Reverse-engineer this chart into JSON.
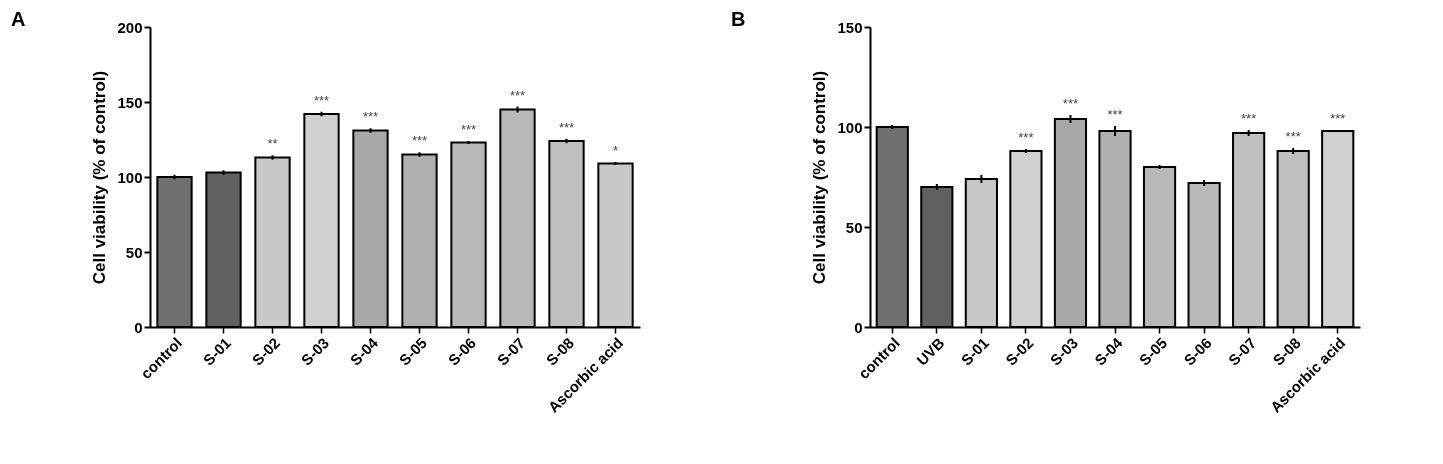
{
  "chart_data": [
    {
      "type": "bar",
      "title": "A",
      "ylabel": "Cell viability (% of control)",
      "categories": [
        "control",
        "S-01",
        "S-02",
        "S-03",
        "S-04",
        "S-05",
        "S-06",
        "S-07",
        "S-08",
        "Ascorbic acid"
      ],
      "values": [
        100,
        103,
        113,
        142,
        131,
        115,
        123,
        145,
        124,
        109
      ],
      "errors": [
        1.5,
        1.5,
        1.5,
        1.5,
        1.5,
        1.5,
        1,
        2,
        1.5,
        1
      ],
      "colors": [
        "#707070",
        "#606060",
        "#c8c8c8",
        "#d0d0d0",
        "#a8a8a8",
        "#b0b0b0",
        "#b8b8b8",
        "#b8b8b8",
        "#c0c0c0",
        "#c8c8c8"
      ],
      "ylim": [
        0,
        200
      ],
      "yticks": [
        0,
        50,
        100,
        150,
        200
      ],
      "grid": false,
      "annotations": [
        {
          "text": "**",
          "x": "S-02",
          "y": 114.5
        },
        {
          "text": "***",
          "x": "S-03",
          "y": 143.5
        },
        {
          "text": "***",
          "x": "S-04",
          "y": 132.5
        },
        {
          "text": "***",
          "x": "S-05",
          "y": 116.5
        },
        {
          "text": "***",
          "x": "S-06",
          "y": 124
        },
        {
          "text": "***",
          "x": "S-07",
          "y": 147
        },
        {
          "text": "***",
          "x": "S-08",
          "y": 125.5
        },
        {
          "text": "*",
          "x": "Ascorbic acid",
          "y": 110
        }
      ]
    },
    {
      "type": "bar",
      "title": "B",
      "ylabel": "Cell viability (% of control)",
      "categories": [
        "control",
        "UVB",
        "S-01",
        "S-02",
        "S-03",
        "S-04",
        "S-05",
        "S-06",
        "S-07",
        "S-08",
        "Ascorbic acid"
      ],
      "values": [
        100,
        70,
        74,
        88,
        104,
        98,
        80,
        72,
        97,
        88,
        98
      ],
      "errors": [
        1,
        1.5,
        2,
        1,
        2,
        2.5,
        1,
        1.5,
        1.5,
        1.5,
        0.5
      ],
      "colors": [
        "#707070",
        "#606060",
        "#c8c8c8",
        "#d0d0d0",
        "#a8a8a8",
        "#b0b0b0",
        "#b8b8b8",
        "#b8b8b8",
        "#c0c0c0",
        "#c0c0c0",
        "#d0d0d0"
      ],
      "ylim": [
        0,
        150
      ],
      "yticks": [
        0,
        50,
        100,
        150
      ],
      "grid": false,
      "annotations": [
        {
          "text": "***",
          "x": "S-02",
          "y": 89
        },
        {
          "text": "***",
          "x": "S-03",
          "y": 106
        },
        {
          "text": "***",
          "x": "S-04",
          "y": 100.5
        },
        {
          "text": "***",
          "x": "S-07",
          "y": 98.5
        },
        {
          "text": "***",
          "x": "S-08",
          "y": 89.5
        },
        {
          "text": "***",
          "x": "Ascorbic acid",
          "y": 98.5
        }
      ]
    }
  ]
}
